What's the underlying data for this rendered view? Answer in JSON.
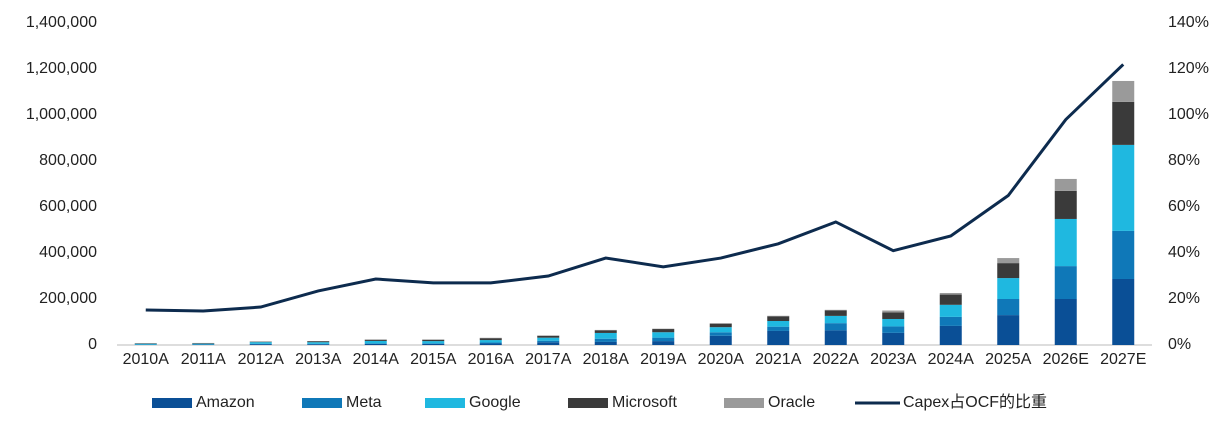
{
  "chart_data": {
    "type": "bar",
    "stacked": true,
    "categories": [
      "2010A",
      "2011A",
      "2012A",
      "2013A",
      "2014A",
      "2015A",
      "2016A",
      "2017A",
      "2018A",
      "2019A",
      "2020A",
      "2021A",
      "2022A",
      "2023A",
      "2024A",
      "2025A",
      "2026E",
      "2027E"
    ],
    "series": [
      {
        "name": "Amazon",
        "color": "#0a4f96",
        "values": [
          1000,
          1800,
          3800,
          3400,
          4900,
          4600,
          6700,
          11900,
          13400,
          16900,
          40100,
          61100,
          63600,
          52700,
          83000,
          130000,
          200000,
          287000
        ]
      },
      {
        "name": "Meta",
        "color": "#0f78b8",
        "values": [
          600,
          600,
          1200,
          1400,
          1800,
          2500,
          4500,
          6700,
          13900,
          15100,
          15100,
          18600,
          31400,
          28100,
          39200,
          70000,
          143000,
          209000
        ]
      },
      {
        "name": "Google",
        "color": "#1fb8e0",
        "values": [
          4000,
          3400,
          7400,
          7400,
          11000,
          9900,
          10200,
          13200,
          25100,
          23500,
          22300,
          24600,
          31500,
          32300,
          52500,
          91000,
          205000,
          374000
        ]
      },
      {
        "name": "Microsoft",
        "color": "#3a3a3a",
        "values": [
          2000,
          2400,
          2300,
          4300,
          5500,
          5900,
          8300,
          8100,
          11600,
          13900,
          15400,
          20600,
          23900,
          28100,
          44500,
          65000,
          122000,
          187000
        ]
      },
      {
        "name": "Oracle",
        "color": "#9a9a9a",
        "values": [
          500,
          700,
          600,
          650,
          600,
          1400,
          1600,
          2000,
          1500,
          1600,
          1600,
          2100,
          2500,
          8700,
          6900,
          22000,
          52000,
          91000
        ]
      },
      {
        "name": "Capex占OCF的比重",
        "type": "line",
        "axis": "y2",
        "color": "#0d2b4e",
        "values": [
          15.2,
          14.8,
          16.5,
          23.5,
          28.7,
          27,
          27,
          30,
          37.8,
          34,
          37.8,
          44,
          53.5,
          41,
          47.4,
          65,
          98,
          122
        ]
      }
    ],
    "ylim": [
      0,
      1400000
    ],
    "yticks": [
      0,
      {
        "value": 200000,
        "label": "200,000"
      },
      {
        "value": 400000,
        "label": "400,000"
      },
      {
        "value": 600000,
        "label": "600,000"
      },
      {
        "value": 800000,
        "label": "800,000"
      },
      {
        "value": 1000000,
        "label": "1,000,000"
      },
      {
        "value": 1200000,
        "label": "1,200,000"
      },
      {
        "value": 1400000,
        "label": "1,400,000"
      }
    ],
    "y2lim": [
      0,
      140
    ],
    "y2ticks": [
      {
        "value": 0,
        "label": "0%"
      },
      {
        "value": 20,
        "label": "20%"
      },
      {
        "value": 40,
        "label": "40%"
      },
      {
        "value": 60,
        "label": "60%"
      },
      {
        "value": 80,
        "label": "80%"
      },
      {
        "value": 100,
        "label": "100%"
      },
      {
        "value": 120,
        "label": "120%"
      },
      {
        "value": 140,
        "label": "140%"
      }
    ],
    "legend": "bottom"
  }
}
